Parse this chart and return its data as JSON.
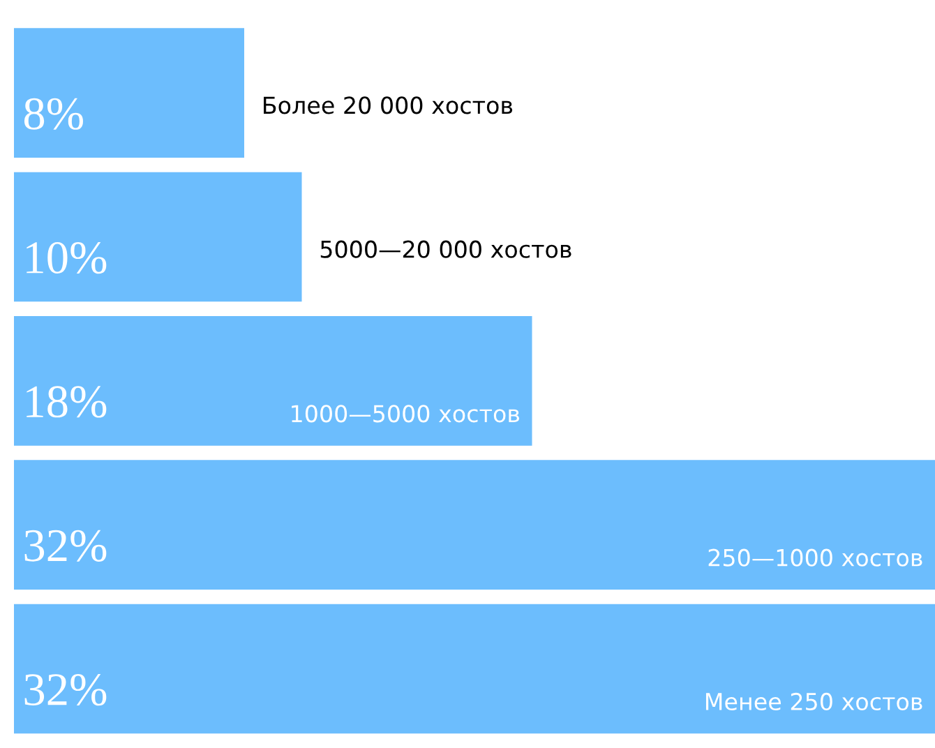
{
  "chart_data": {
    "type": "bar",
    "orientation": "horizontal",
    "categories": [
      "Более 20 000 хостов",
      "5000—20 000 хостов",
      "1000—5000 хостов",
      "250—1000 хостов",
      "Менее 250 хостов"
    ],
    "values": [
      8,
      10,
      18,
      32,
      32
    ],
    "value_labels": [
      "8%",
      "10%",
      "18%",
      "32%",
      "32%"
    ],
    "color": "#6cbdfd"
  }
}
